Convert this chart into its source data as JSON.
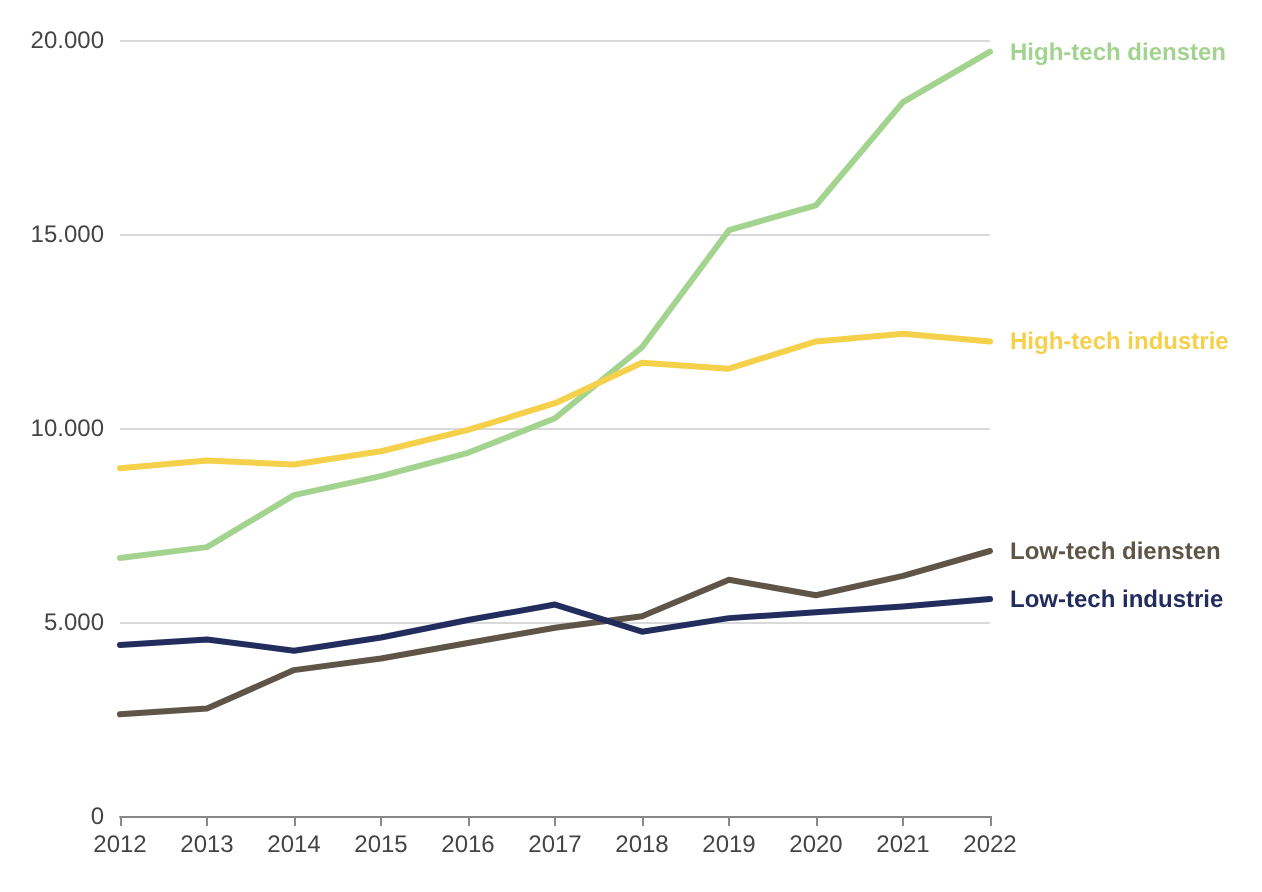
{
  "chart_data": {
    "type": "line",
    "categories": [
      "2012",
      "2013",
      "2014",
      "2015",
      "2016",
      "2017",
      "2018",
      "2019",
      "2020",
      "2021",
      "2022"
    ],
    "ylim": [
      0,
      20000
    ],
    "yticks": [
      {
        "value": 0,
        "label": "0"
      },
      {
        "value": 5000,
        "label": "5.000"
      },
      {
        "value": 10000,
        "label": "10.000"
      },
      {
        "value": 15000,
        "label": "15.000"
      },
      {
        "value": 20000,
        "label": "20.000"
      }
    ],
    "grid": "y",
    "legend": false,
    "marker": "none",
    "line_style": "solid",
    "series": [
      {
        "name": "High-tech diensten",
        "color": "#a3d48f",
        "values": [
          6650,
          6930,
          8270,
          8760,
          9360,
          10250,
          12080,
          15100,
          15740,
          18400,
          19700
        ]
      },
      {
        "name": "High-tech industrie",
        "color": "#f5d04a",
        "values": [
          8960,
          9160,
          9060,
          9400,
          9950,
          10640,
          11680,
          11530,
          12230,
          12430,
          12230
        ]
      },
      {
        "name": "Low-tech diensten",
        "color": "#5e5447",
        "values": [
          2620,
          2770,
          3760,
          4060,
          4460,
          4850,
          5150,
          6090,
          5690,
          6190,
          6830
        ]
      },
      {
        "name": "Low-tech industrie",
        "color": "#222d5e",
        "values": [
          4410,
          4550,
          4260,
          4600,
          5050,
          5450,
          4750,
          5100,
          5250,
          5400,
          5590
        ]
      }
    ]
  }
}
